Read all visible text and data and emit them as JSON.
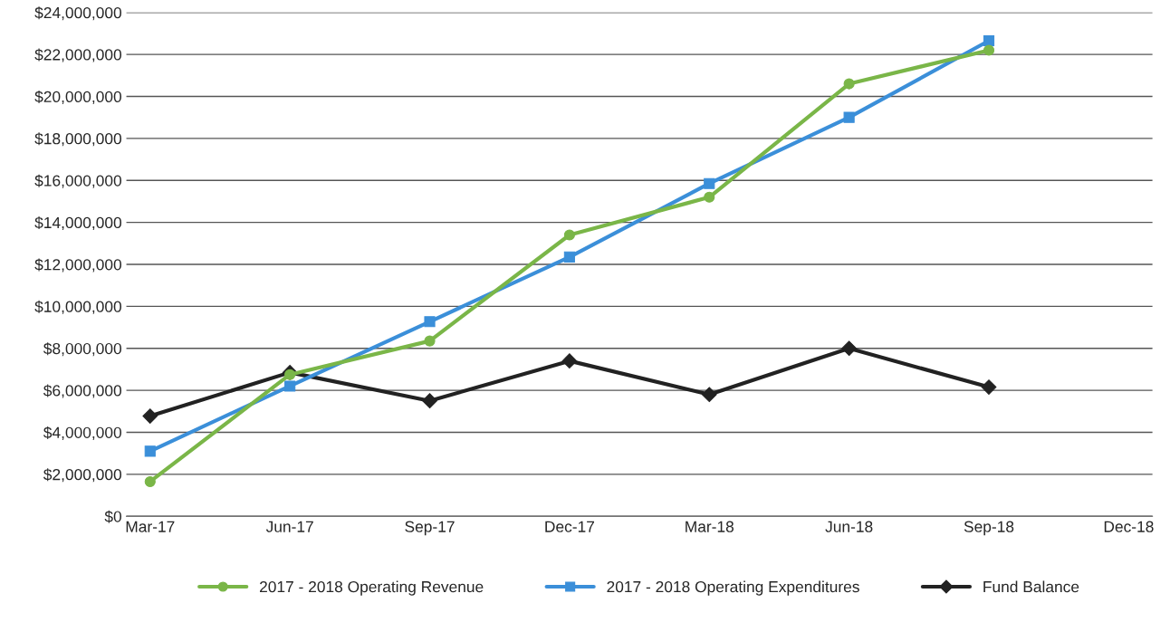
{
  "chart_data": {
    "type": "line",
    "categories": [
      "Mar-17",
      "Jun-17",
      "Sep-17",
      "Dec-17",
      "Mar-18",
      "Jun-18",
      "Sep-18",
      "Dec-18"
    ],
    "series": [
      {
        "name": "2017 - 2018 Operating Revenue",
        "color": "#7ab648",
        "marker": "circle",
        "values": [
          1650000,
          6750000,
          8350000,
          13400000,
          15200000,
          20600000,
          22200000,
          null
        ]
      },
      {
        "name": "2017 - 2018 Operating Expenditures",
        "color": "#3b8fd9",
        "marker": "square",
        "values": [
          3100000,
          6200000,
          9270000,
          12350000,
          15850000,
          19000000,
          22650000,
          null
        ]
      },
      {
        "name": "Fund Balance",
        "color": "#222222",
        "marker": "diamond",
        "values": [
          4770000,
          6850000,
          5500000,
          7400000,
          5800000,
          8000000,
          6150000,
          null
        ]
      }
    ],
    "ylim": [
      0,
      24000000
    ],
    "yticks": [
      {
        "value": 0,
        "label": "$0"
      },
      {
        "value": 2000000,
        "label": "$2,000,000"
      },
      {
        "value": 4000000,
        "label": "$4,000,000"
      },
      {
        "value": 6000000,
        "label": "$6,000,000"
      },
      {
        "value": 8000000,
        "label": "$8,000,000"
      },
      {
        "value": 10000000,
        "label": "$10,000,000"
      },
      {
        "value": 12000000,
        "label": "$12,000,000"
      },
      {
        "value": 14000000,
        "label": "$14,000,000"
      },
      {
        "value": 16000000,
        "label": "$16,000,000"
      },
      {
        "value": 18000000,
        "label": "$18,000,000"
      },
      {
        "value": 20000000,
        "label": "$20,000,000"
      },
      {
        "value": 22000000,
        "label": "$22,000,000"
      },
      {
        "value": 24000000,
        "label": "$24,000,000"
      }
    ],
    "grid": "y",
    "legend": "bottom",
    "line_style": "solid"
  }
}
